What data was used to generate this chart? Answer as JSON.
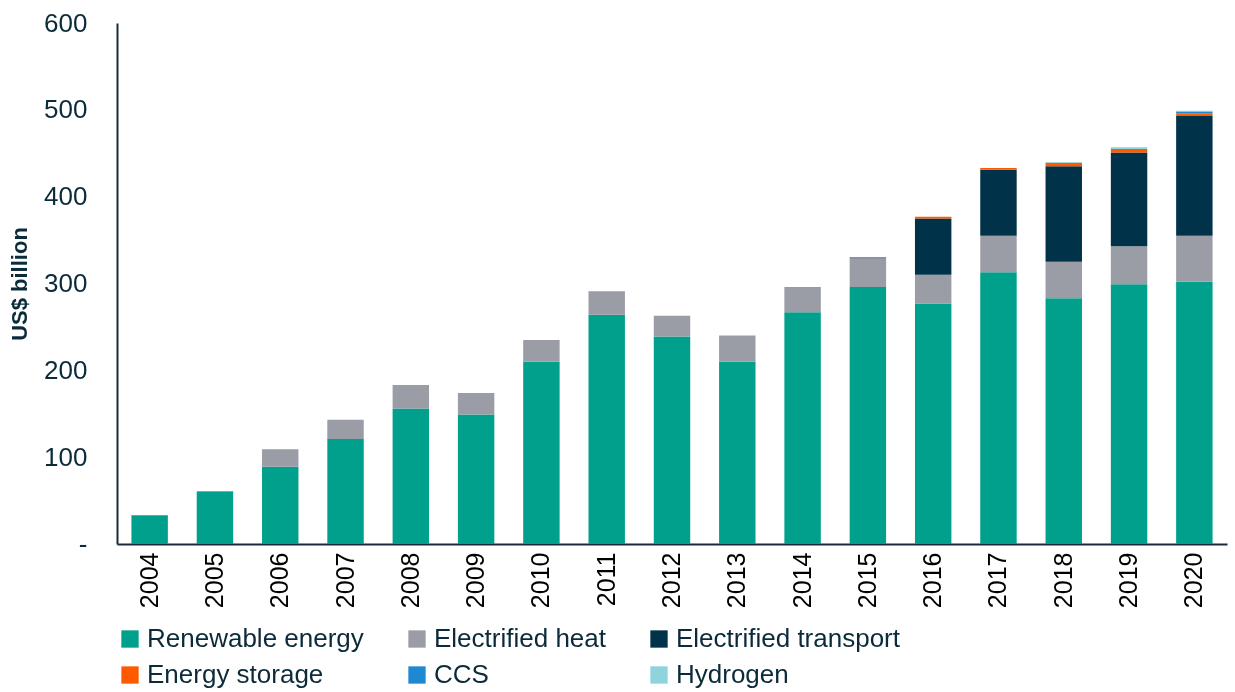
{
  "chart_data": {
    "type": "bar",
    "stacked": true,
    "ylabel": "US$ billion",
    "categories": [
      "2004",
      "2005",
      "2006",
      "2007",
      "2008",
      "2009",
      "2010",
      "2011",
      "2012",
      "2013",
      "2014",
      "2015",
      "2016",
      "2017",
      "2018",
      "2019",
      "2020"
    ],
    "series": [
      {
        "name": "Renewable energy",
        "color": "#00a08c",
        "values": [
          33,
          60,
          89,
          121,
          156,
          149,
          210,
          264,
          239,
          210,
          267,
          296,
          277,
          313,
          283,
          299,
          302
        ]
      },
      {
        "name": "Electrified heat",
        "color": "#9b9da6",
        "values": [
          0,
          1,
          20,
          22,
          27,
          25,
          25,
          27,
          24,
          30,
          28,
          33,
          33,
          42,
          42,
          44,
          53
        ]
      },
      {
        "name": "Electrified transport",
        "color": "#003349",
        "values": [
          0,
          0,
          0,
          0,
          0,
          0,
          0,
          0,
          0,
          0,
          0,
          1,
          65,
          76,
          110,
          108,
          138
        ]
      },
      {
        "name": "Energy storage",
        "color": "#ff5a00",
        "values": [
          0,
          0,
          0,
          0,
          0,
          0,
          0,
          0,
          0,
          0,
          1,
          0,
          2,
          2,
          4,
          4,
          3
        ]
      },
      {
        "name": "CCS",
        "color": "#1e88d0",
        "values": [
          0,
          0,
          0,
          0,
          0,
          0,
          0,
          0,
          0,
          0,
          0,
          0,
          0,
          0,
          0,
          0,
          2
        ]
      },
      {
        "name": "Hydrogen",
        "color": "#8fd3dc",
        "values": [
          0,
          0,
          0,
          0,
          0,
          0,
          0,
          0,
          0,
          0,
          0,
          0,
          0,
          0,
          1,
          2,
          1
        ]
      }
    ],
    "ylim": [
      0,
      600
    ],
    "yticks": [
      {
        "value": 0,
        "label": "-"
      },
      100,
      200,
      300,
      400,
      500,
      600
    ],
    "grid": false,
    "legend": "bottom"
  }
}
